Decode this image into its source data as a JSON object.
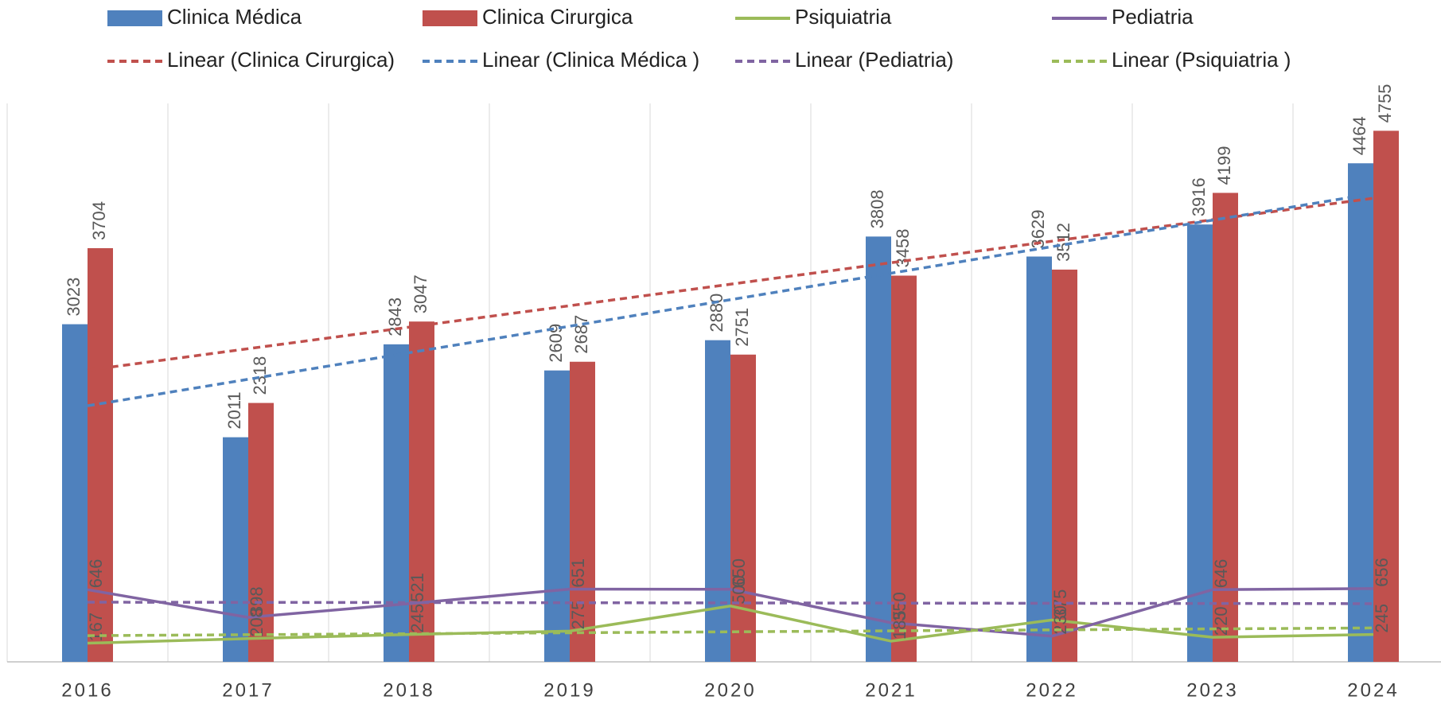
{
  "chart_data": {
    "type": "bar_line",
    "categories": [
      "2016",
      "2017",
      "2018",
      "2019",
      "2020",
      "2021",
      "2022",
      "2023",
      "2024"
    ],
    "series": [
      {
        "name": "Clinica Médica",
        "kind": "bar",
        "color": "#4f81bd",
        "values": [
          3023,
          2011,
          2843,
          2609,
          2880,
          3808,
          3629,
          3916,
          4464
        ]
      },
      {
        "name": "Clinica Cirurgica",
        "kind": "bar",
        "color": "#c0504d",
        "values": [
          3704,
          2318,
          3047,
          2687,
          2751,
          3458,
          3512,
          4199,
          4755
        ]
      },
      {
        "name": "Psiquiatria",
        "kind": "line",
        "color": "#9bbb59",
        "values": [
          167,
          208,
          245,
          275,
          500,
          185,
          375,
          220,
          245
        ]
      },
      {
        "name": "Pediatria",
        "kind": "line",
        "color": "#8064a2",
        "values": [
          646,
          398,
          521,
          651,
          650,
          350,
          230,
          646,
          656
        ]
      }
    ],
    "trendlines": [
      {
        "name": "Linear (Clinica Cirurgica)",
        "color": "#c0504d",
        "series": "Clinica Cirurgica"
      },
      {
        "name": "Linear (Clinica Médica )",
        "color": "#4f81bd",
        "series": "Clinica Médica"
      },
      {
        "name": "Linear (Pediatria)",
        "color": "#8064a2",
        "series": "Pediatria"
      },
      {
        "name": "Linear (Psiquiatria )",
        "color": "#9bbb59",
        "series": "Psiquiatria"
      }
    ],
    "ylim": [
      0,
      5000
    ],
    "grid": true
  }
}
